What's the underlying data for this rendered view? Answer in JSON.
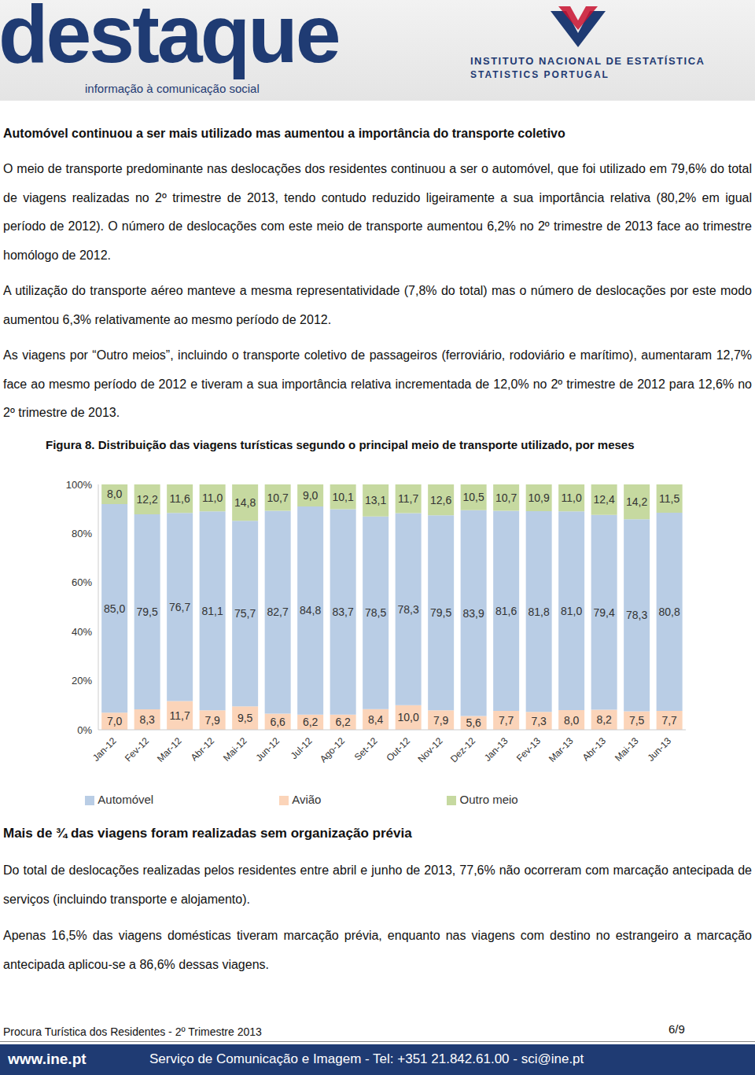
{
  "header": {
    "logo": "destaque",
    "tagline": "informação à comunicação social",
    "institute": "INSTITUTO NACIONAL DE ESTATÍSTICA",
    "institute_en": "STATISTICS PORTUGAL"
  },
  "section1": {
    "title": "Automóvel continuou a ser mais utilizado mas aumentou a importância do transporte coletivo",
    "paragraphs": [
      "O meio de transporte predominante nas deslocações dos residentes continuou a ser o automóvel, que foi utilizado em 79,6% do total de viagens realizadas no 2º trimestre de 2013, tendo contudo reduzido ligeiramente a sua importância relativa (80,2% em igual período de 2012). O número de deslocações com este meio de transporte aumentou 6,2% no 2º trimestre de 2013 face ao trimestre homólogo de 2012.",
      "A utilização do transporte aéreo manteve a mesma representatividade (7,8% do total) mas o número de deslocações por este modo aumentou 6,3% relativamente ao mesmo período de 2012.",
      "As viagens por “Outro meios”, incluindo o transporte coletivo de passageiros (ferroviário, rodoviário e marítimo), aumentaram 12,7% face ao mesmo período de 2012 e tiveram a sua importância relativa incrementada de 12,0% no 2º trimestre de 2012 para 12,6% no 2º trimestre de 2013."
    ]
  },
  "chart_data": {
    "type": "bar",
    "title": "Figura 8. Distribuição das viagens turísticas segundo o principal meio de transporte utilizado, por meses",
    "categories": [
      "Jan-12",
      "Fev-12",
      "Mar-12",
      "Abr-12",
      "Mai-12",
      "Jun-12",
      "Jul-12",
      "Ago-12",
      "Set-12",
      "Out-12",
      "Nov-12",
      "Dez-12",
      "Jan-13",
      "Fev-13",
      "Mar-13",
      "Abr-13",
      "Mai-13",
      "Jun-13"
    ],
    "series": [
      {
        "name": "Avião",
        "color": "#fbd4b9",
        "values": [
          7.0,
          8.3,
          11.7,
          7.9,
          9.5,
          6.6,
          6.2,
          6.2,
          8.4,
          10.0,
          7.9,
          5.6,
          7.7,
          7.3,
          8.0,
          8.2,
          7.5,
          7.7
        ],
        "value_labels": [
          "7,0",
          "8,3",
          "11,7",
          "7,9",
          "9,5",
          "6,6",
          "6,2",
          "6,2",
          "8,4",
          "10,0",
          "7,9",
          "5,6",
          "7,7",
          "7,3",
          "8,0",
          "8,2",
          "7,5",
          "7,7"
        ]
      },
      {
        "name": "Automóvel",
        "color": "#b9cde5",
        "values": [
          85.0,
          79.5,
          76.7,
          81.1,
          75.7,
          82.7,
          84.8,
          83.7,
          78.5,
          78.3,
          79.5,
          83.9,
          81.6,
          81.8,
          81.0,
          79.4,
          78.3,
          80.8
        ],
        "value_labels": [
          "85,0",
          "79,5",
          "76,7",
          "81,1",
          "75,7",
          "82,7",
          "84,8",
          "83,7",
          "78,5",
          "78,3",
          "79,5",
          "83,9",
          "81,6",
          "81,8",
          "81,0",
          "79,4",
          "78,3",
          "80,8"
        ]
      },
      {
        "name": "Outro meio",
        "color": "#c6d9a0",
        "values": [
          8.0,
          12.2,
          11.6,
          11.0,
          14.8,
          10.7,
          9.0,
          10.1,
          13.1,
          11.7,
          12.6,
          10.5,
          10.7,
          10.9,
          11.0,
          12.4,
          14.2,
          11.5
        ],
        "value_labels": [
          "8,0",
          "12,2",
          "11,6",
          "11,0",
          "14,8",
          "10,7",
          "9,0",
          "10,1",
          "13,1",
          "11,7",
          "12,6",
          "10,5",
          "10,7",
          "10,9",
          "11,0",
          "12,4",
          "14,2",
          "11,5"
        ]
      }
    ],
    "ylim": [
      0,
      100
    ],
    "yticks": [
      {
        "value": 0,
        "label": "0%"
      },
      {
        "value": 20,
        "label": "20%"
      },
      {
        "value": 40,
        "label": "40%"
      },
      {
        "value": 60,
        "label": "60%"
      },
      {
        "value": 80,
        "label": "80%"
      },
      {
        "value": 100,
        "label": "100%"
      }
    ],
    "stacked": true,
    "data_labels": true,
    "legend": "bottom",
    "grid": false
  },
  "section2": {
    "title": "Mais de ¾ das viagens foram realizadas sem organização prévia",
    "paragraphs": [
      "Do total de deslocações realizadas pelos residentes entre abril e junho de 2013, 77,6% não ocorreram com marcação antecipada de serviços (incluindo transporte e alojamento).",
      "Apenas 16,5% das viagens domésticas tiveram marcação prévia, enquanto nas viagens com destino no estrangeiro a marcação antecipada aplicou-se a 86,6% dessas viagens."
    ]
  },
  "footer": {
    "left": "Procura Turística dos Residentes - 2º Trimestre 2013",
    "page": "6/9",
    "url": "www.ine.pt",
    "contact": "Serviço de Comunicação e Imagem - Tel: +351 21.842.61.00 - sci@ine.pt"
  }
}
